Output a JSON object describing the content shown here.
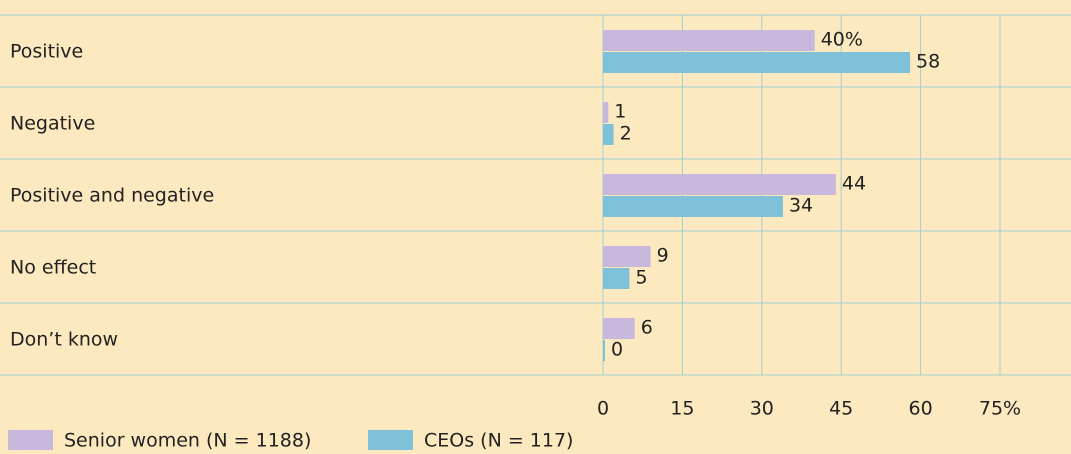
{
  "chart_data": {
    "type": "bar",
    "orientation": "horizontal",
    "categories": [
      "Positive",
      "Negative",
      "Positive and negative",
      "No effect",
      "Don’t know"
    ],
    "series": [
      {
        "name": "Senior women (N = 1188)",
        "color": "#c7b8dc",
        "values": [
          40,
          1,
          44,
          9,
          6
        ],
        "value_labels": [
          "40%",
          "1",
          "44",
          "9",
          "6"
        ]
      },
      {
        "name": "CEOs (N = 117)",
        "color": "#7fc1d9",
        "values": [
          58,
          2,
          34,
          5,
          0
        ]
      }
    ],
    "xlim": [
      0,
      75
    ],
    "xticks": [
      0,
      15,
      30,
      45,
      60,
      {
        "value": 75,
        "label": "75%"
      }
    ],
    "grid": true,
    "legend": "bottom-left"
  }
}
